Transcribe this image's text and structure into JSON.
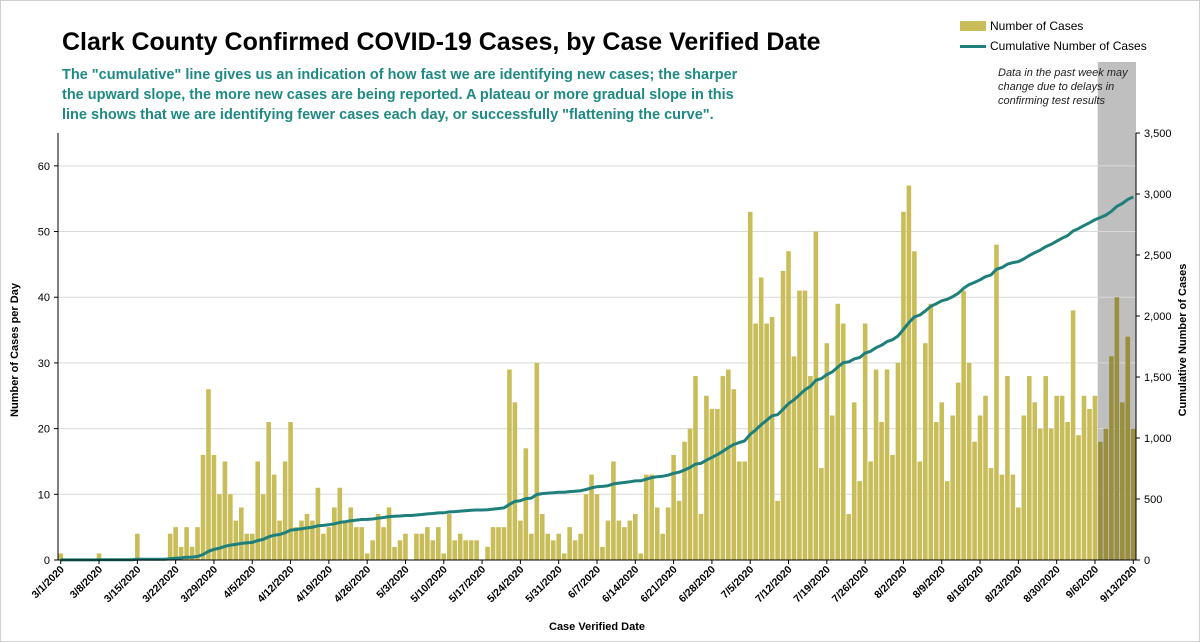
{
  "title": "Clark County Confirmed COVID-19 Cases, by Case Verified Date",
  "note": "The \"cumulative\" line gives  us an indication of how fast we are identifying new cases; the sharper the upward slope, the more new cases are being reported. A plateau or more gradual slope in this line shows that we are identifying fewer cases each day, or successfully \"flattening the curve\".",
  "shaded_note": "Data in the past week may change due to delays in confirming test results",
  "colors": {
    "bar": "#c9bd5a",
    "bar_shaded": "#9a8f3e",
    "line": "#1e7f7b",
    "shade": "#bfbfbf"
  },
  "chart_data": {
    "type": "bar+line",
    "title": "Clark County Confirmed COVID-19 Cases, by Case Verified Date",
    "xlabel": "Case Verified Date",
    "ylabel": "Number of Cases per Day",
    "y2label": "Cumulative Number of Cases",
    "ylim": [
      0,
      65
    ],
    "y2lim": [
      0,
      3500
    ],
    "yticks": [
      0,
      10,
      20,
      30,
      40,
      50,
      60
    ],
    "y2ticks": [
      "0",
      "500",
      "1,000",
      "1,500",
      "2,000",
      "2,500",
      "3,000",
      "3,500"
    ],
    "y2tick_values": [
      0,
      500,
      1000,
      1500,
      2000,
      2500,
      3000,
      3500
    ],
    "start_date": "3/1/2020",
    "xtick_labels": [
      "3/1/2020",
      "3/8/2020",
      "3/15/2020",
      "3/22/2020",
      "3/29/2020",
      "4/5/2020",
      "4/12/2020",
      "4/19/2020",
      "4/26/2020",
      "5/3/2020",
      "5/10/2020",
      "5/17/2020",
      "5/24/2020",
      "5/31/2020",
      "6/7/2020",
      "6/14/2020",
      "6/21/2020",
      "6/28/2020",
      "7/5/2020",
      "7/12/2020",
      "7/19/2020",
      "7/26/2020",
      "8/2/2020",
      "8/9/2020",
      "8/16/2020",
      "8/23/2020",
      "8/30/2020",
      "9/6/2020",
      "9/13/2020"
    ],
    "legend": [
      "Number of Cases",
      "Cumulative Number of Cases"
    ],
    "shaded_from_index": 190,
    "daily_cases": [
      1,
      0,
      0,
      0,
      0,
      0,
      0,
      1,
      0,
      0,
      0,
      0,
      0,
      0,
      4,
      0,
      0,
      0,
      0,
      0,
      4,
      5,
      2,
      5,
      2,
      5,
      16,
      26,
      16,
      10,
      15,
      10,
      6,
      8,
      4,
      4,
      15,
      10,
      21,
      13,
      6,
      15,
      21,
      5,
      6,
      7,
      6,
      11,
      4,
      5,
      8,
      11,
      6,
      8,
      5,
      5,
      1,
      3,
      7,
      5,
      8,
      2,
      3,
      4,
      0,
      4,
      4,
      5,
      3,
      5,
      1,
      7,
      3,
      4,
      3,
      3,
      3,
      0,
      2,
      5,
      5,
      5,
      29,
      24,
      6,
      17,
      4,
      30,
      7,
      4,
      3,
      4,
      1,
      5,
      3,
      4,
      10,
      13,
      10,
      2,
      6,
      15,
      6,
      5,
      6,
      7,
      1,
      13,
      13,
      8,
      4,
      8,
      16,
      9,
      18,
      20,
      28,
      7,
      25,
      23,
      23,
      28,
      29,
      26,
      15,
      15,
      53,
      36,
      43,
      36,
      37,
      9,
      44,
      47,
      31,
      41,
      41,
      28,
      50,
      14,
      33,
      22,
      39,
      36,
      7,
      24,
      12,
      36,
      15,
      29,
      21,
      29,
      16,
      30,
      53,
      57,
      47,
      15,
      33,
      39,
      21,
      24,
      12,
      22,
      27,
      41,
      30,
      18,
      22,
      25,
      14,
      48,
      13,
      28,
      13,
      8,
      22,
      28,
      24,
      20,
      28,
      20,
      25,
      25,
      21,
      38,
      19,
      25,
      23,
      25,
      18,
      20,
      31,
      40,
      24,
      34,
      20
    ]
  }
}
